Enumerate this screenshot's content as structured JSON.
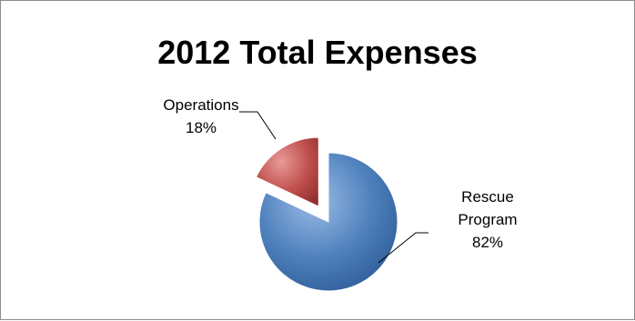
{
  "chart_data": {
    "type": "pie",
    "title": "2012 Total Expenses",
    "slices": [
      {
        "label_lines": [
          "Operations",
          "18%"
        ],
        "value": 18,
        "color": "#c0504d",
        "exploded": true
      },
      {
        "label_lines": [
          "Rescue",
          "Program",
          "82%"
        ],
        "value": 82,
        "color": "#4f81bd",
        "exploded": false
      }
    ],
    "legend": "none",
    "data_labels": "outside-with-leader-lines"
  }
}
